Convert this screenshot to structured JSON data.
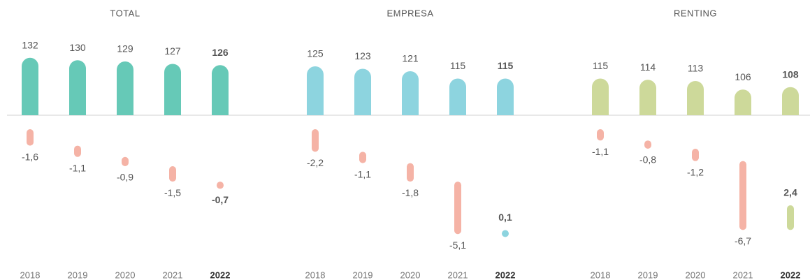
{
  "chart_data": [
    {
      "type": "bar",
      "title": "TOTAL",
      "categories": [
        "2018",
        "2019",
        "2020",
        "2021",
        "2022"
      ],
      "values": [
        132,
        130,
        129,
        127,
        126
      ],
      "color": "#66c9b7",
      "negative_color": "#f5b3a6",
      "ylim": [
        85,
        135
      ],
      "y2lim": [
        -11,
        0
      ],
      "changes": {
        "values": [
          -1.6,
          -1.1,
          -0.9,
          -1.5,
          -0.7
        ],
        "value_labels": [
          "-1,6",
          "-1,1",
          "-0,9",
          "-1,5",
          "-0,7"
        ]
      }
    },
    {
      "type": "bar",
      "title": "EMPRESA",
      "categories": [
        "2018",
        "2019",
        "2020",
        "2021",
        "2022"
      ],
      "values": [
        125,
        123,
        121,
        115,
        115
      ],
      "color": "#8dd4df",
      "negative_color": "#f5b3a6",
      "ylim": [
        85,
        135
      ],
      "y2lim": [
        -11,
        0
      ],
      "changes": {
        "values": [
          -2.2,
          -1.1,
          -1.8,
          -5.1,
          0.1
        ],
        "value_labels": [
          "-2,2",
          "-1,1",
          "-1,8",
          "-5,1",
          "0,1"
        ]
      }
    },
    {
      "type": "bar",
      "title": "RENTING",
      "categories": [
        "2018",
        "2019",
        "2020",
        "2021",
        "2022"
      ],
      "values": [
        115,
        114,
        113,
        106,
        108
      ],
      "color": "#cdd99a",
      "negative_color": "#f5b3a6",
      "ylim": [
        85,
        135
      ],
      "y2lim": [
        -11,
        0
      ],
      "changes": {
        "values": [
          -1.1,
          -0.8,
          -1.2,
          -6.7,
          2.4
        ],
        "value_labels": [
          "-1,1",
          "-0,8",
          "-1,2",
          "-6,7",
          "2,4"
        ]
      }
    }
  ]
}
